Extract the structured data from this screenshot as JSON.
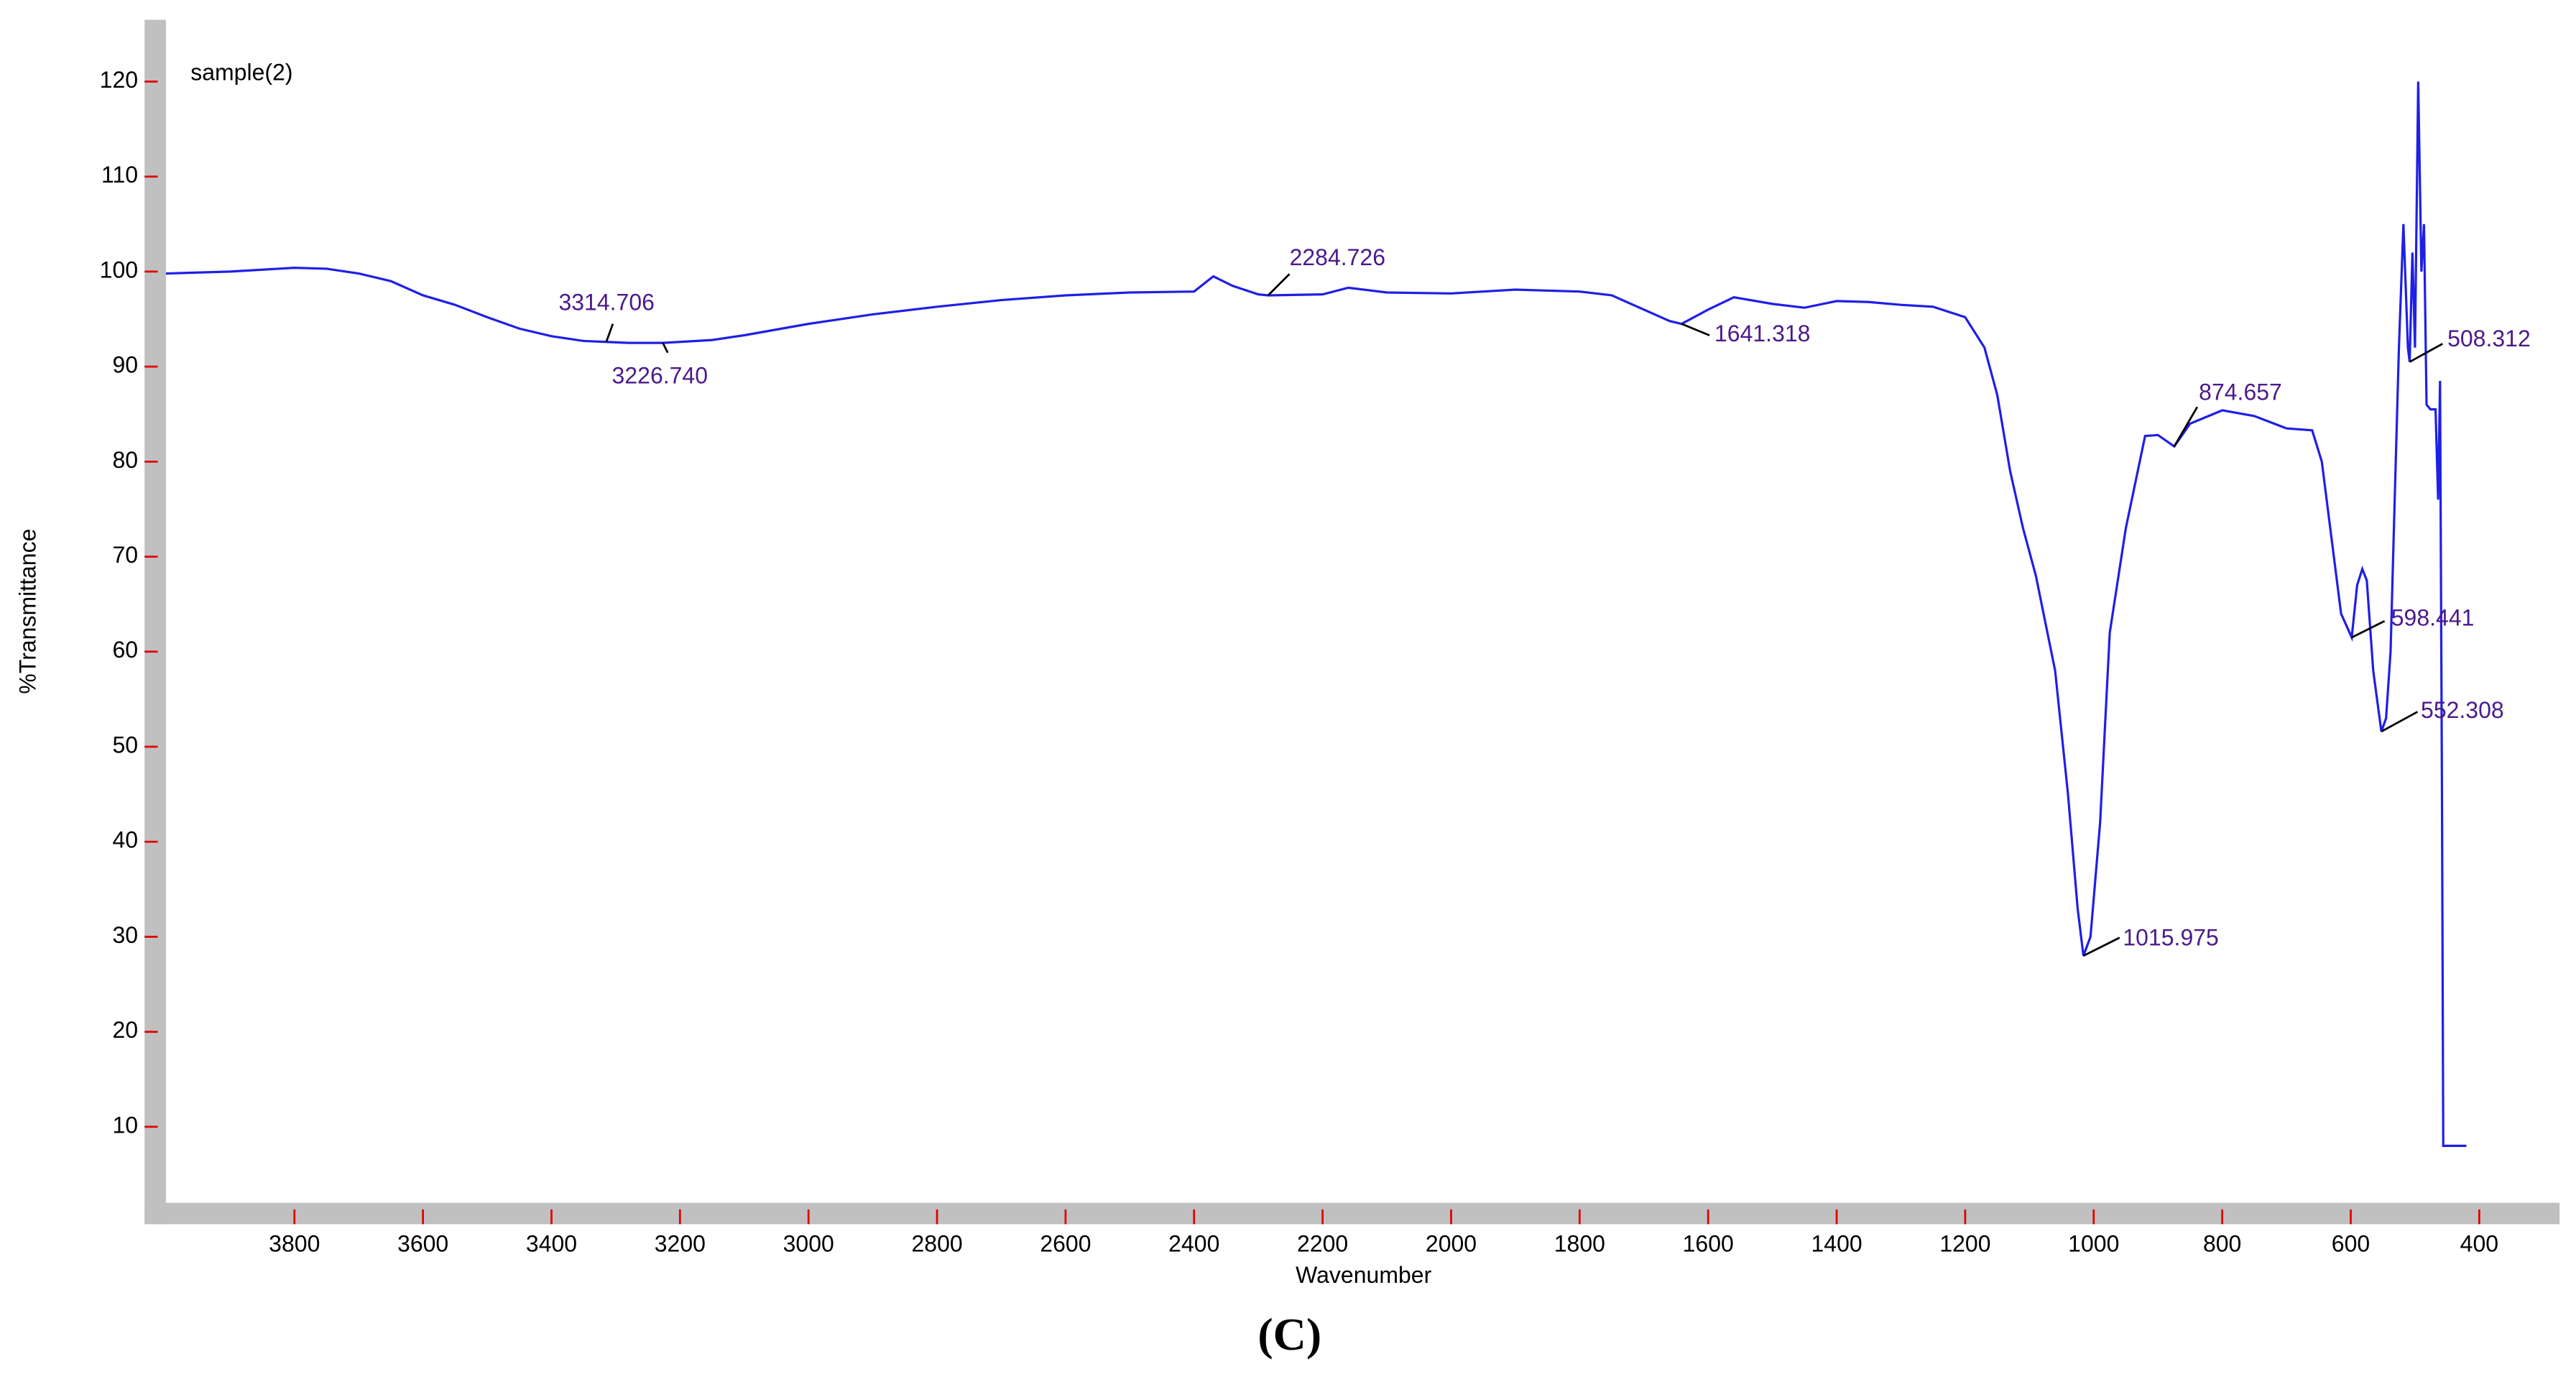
{
  "chart_data": {
    "type": "line",
    "title": "sample(2)",
    "xlabel": "Wavenumber",
    "ylabel": "%Transmittance",
    "caption": "(C)",
    "color": "#1f1fe6",
    "xlim": [
      4000,
      275
    ],
    "ylim": [
      2,
      126.5
    ],
    "xticks": [
      3800,
      3600,
      3400,
      3200,
      3000,
      2800,
      2600,
      2400,
      2200,
      2000,
      1800,
      1600,
      1400,
      1200,
      1000,
      800,
      600,
      400
    ],
    "yticks": [
      10,
      20,
      30,
      40,
      50,
      60,
      70,
      80,
      90,
      100,
      110,
      120
    ],
    "x": [
      4000,
      3900,
      3800,
      3750,
      3700,
      3650,
      3600,
      3550,
      3500,
      3450,
      3400,
      3350,
      3314.706,
      3280,
      3226.74,
      3150,
      3100,
      3000,
      2900,
      2800,
      2700,
      2600,
      2500,
      2400,
      2370,
      2340,
      2300,
      2284.726,
      2200,
      2160,
      2100,
      2000,
      1900,
      1800,
      1750,
      1700,
      1660,
      1641.318,
      1600,
      1560,
      1500,
      1450,
      1400,
      1350,
      1300,
      1250,
      1200,
      1170,
      1150,
      1130,
      1110,
      1090,
      1060,
      1040,
      1025,
      1015.975,
      1005,
      990,
      975,
      950,
      920,
      900,
      874.657,
      850,
      800,
      750,
      700,
      660,
      645,
      630,
      615,
      598.441,
      590,
      582,
      575,
      565,
      552.308,
      545,
      538,
      532,
      525,
      518,
      511,
      508.312,
      504,
      500,
      495,
      490,
      486,
      482,
      476,
      468,
      464,
      461,
      458,
      456,
      420
    ],
    "values": [
      99.8,
      100.0,
      100.4,
      100.3,
      99.8,
      99.0,
      97.5,
      96.5,
      95.2,
      94.0,
      93.2,
      92.7,
      92.6,
      92.5,
      92.5,
      92.8,
      93.3,
      94.5,
      95.5,
      96.3,
      97.0,
      97.5,
      97.8,
      97.9,
      99.5,
      98.5,
      97.6,
      97.5,
      97.6,
      98.3,
      97.8,
      97.7,
      98.1,
      97.9,
      97.5,
      96.0,
      94.8,
      94.5,
      96.0,
      97.3,
      96.6,
      96.2,
      96.9,
      96.8,
      96.5,
      96.3,
      95.2,
      92.0,
      87.0,
      79.0,
      73.0,
      68.0,
      58.0,
      45.0,
      33.0,
      28.0,
      30.0,
      42.0,
      62.0,
      73.0,
      82.7,
      82.8,
      81.6,
      84.0,
      85.4,
      84.8,
      83.5,
      83.3,
      80.0,
      72.0,
      64.0,
      61.5,
      67.0,
      68.7,
      67.5,
      58.0,
      51.6,
      53.0,
      60.0,
      75.0,
      92.0,
      105.0,
      92.0,
      90.5,
      102.0,
      92.0,
      120.0,
      100.0,
      105.0,
      86.0,
      85.5,
      85.5,
      76.0,
      88.5,
      45.0,
      8.0,
      8.0
    ],
    "annotations": [
      {
        "text": "3314.706",
        "x": 3314.706,
        "y": 92.6
      },
      {
        "text": "3226.740",
        "x": 3226.74,
        "y": 92.5
      },
      {
        "text": "2284.726",
        "x": 2284.726,
        "y": 97.5
      },
      {
        "text": "1641.318",
        "x": 1641.318,
        "y": 94.5
      },
      {
        "text": "874.657",
        "x": 874.657,
        "y": 81.6
      },
      {
        "text": "598.441",
        "x": 598.441,
        "y": 61.5
      },
      {
        "text": "552.308",
        "x": 552.308,
        "y": 51.6
      },
      {
        "text": "508.312",
        "x": 508.312,
        "y": 90.5
      },
      {
        "text": "1015.975",
        "x": 1015.975,
        "y": 28.0
      }
    ]
  }
}
